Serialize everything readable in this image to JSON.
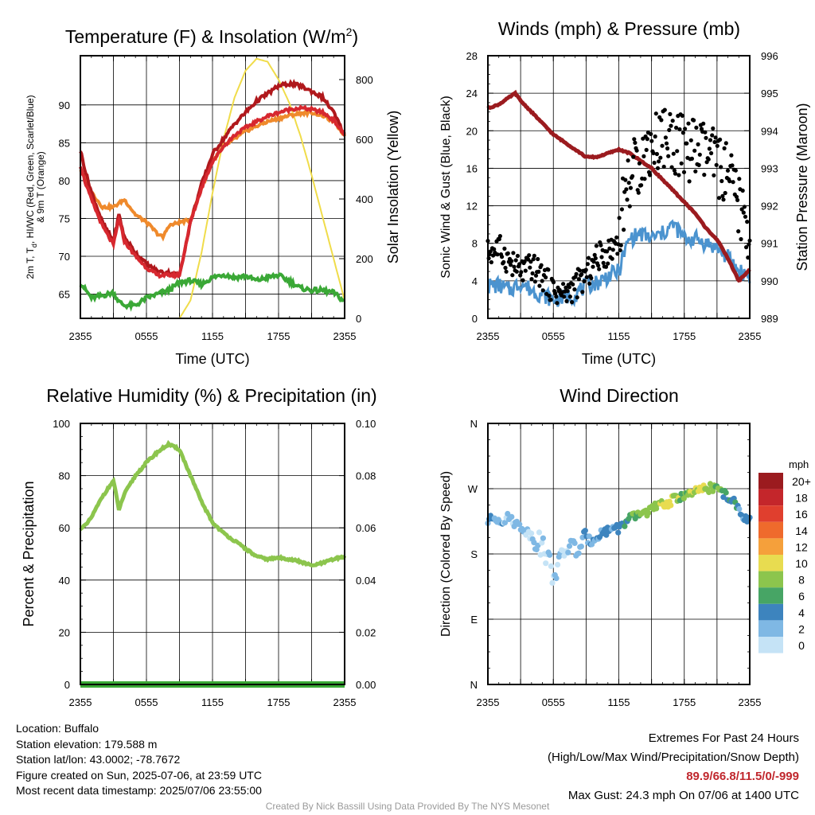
{
  "colors": {
    "temp_2m": "#b0181c",
    "dewpoint": "#3aa836",
    "heat_index": "#d7282f",
    "temp_9m": "#ef8a2c",
    "insolation": "#f0dc4a",
    "sonic_wind": "#4b93cf",
    "gust": "#000000",
    "pressure": "#9b1b1f",
    "humidity": "#8cc54d",
    "precip": "#3aa836",
    "extremes": "#c0272d"
  },
  "chart_data": [
    {
      "type": "line",
      "title": "Temperature (F) & Insolation (W/m²)",
      "title_main": "Temperature (F) & Insolation (W/m",
      "title_sup": "2",
      "title_close": ")",
      "xlabel": "Time (UTC)",
      "ylabel_lines": [
        "2m T, T",
        "d",
        ", HI/WC (Red, Green, Scarlet/Blue)",
        "& 9m T (Orange)"
      ],
      "y2label": "Solar Insolation (Yellow)",
      "x_ticks": [
        "2355",
        "0555",
        "1155",
        "1755",
        "2355"
      ],
      "y_ticks": [
        65,
        70,
        75,
        80,
        85,
        90
      ],
      "y2_ticks": [
        0,
        200,
        400,
        600,
        800
      ],
      "ylim": [
        61.8,
        96.5
      ],
      "y2lim": [
        0,
        880
      ],
      "xlim": [
        0,
        24
      ],
      "grid": true,
      "series": [
        {
          "key": "temp_2m",
          "x": [
            0,
            0.5,
            1,
            2,
            3,
            3.5,
            4,
            5,
            6,
            7,
            8,
            9,
            10,
            11,
            12,
            13,
            14,
            15,
            16,
            17,
            18,
            19,
            20,
            21,
            22,
            23,
            24
          ],
          "y": [
            84,
            81,
            78.5,
            74.5,
            72,
            75.5,
            72.5,
            70.5,
            69,
            68,
            67.8,
            67.5,
            74.5,
            79.5,
            83.5,
            85.5,
            87.5,
            89,
            90.5,
            91.5,
            92.5,
            92.8,
            92.5,
            91.8,
            91,
            89,
            86
          ]
        },
        {
          "key": "dewpoint",
          "x": [
            0,
            1,
            2,
            3,
            3.5,
            4,
            5,
            6,
            7,
            8,
            9,
            10,
            11,
            12,
            13,
            14,
            15,
            16,
            17,
            18,
            19,
            20,
            21,
            22,
            23,
            24
          ],
          "y": [
            66.5,
            64.5,
            64.8,
            65.2,
            64,
            63.5,
            63.5,
            64.5,
            65,
            65.5,
            66.5,
            66.8,
            66.3,
            67.2,
            67.6,
            67.2,
            67.4,
            66.8,
            67.2,
            67.5,
            66.7,
            65.8,
            65.5,
            65.5,
            65.2,
            64
          ]
        },
        {
          "key": "heat_index",
          "x": [
            0,
            0.5,
            1,
            2,
            3,
            3.5,
            4,
            5,
            6,
            7,
            8,
            9,
            10,
            11,
            12,
            13,
            14,
            15,
            16,
            17,
            18,
            19,
            20,
            21,
            22,
            23,
            24
          ],
          "y": [
            82,
            79.5,
            77.5,
            74,
            71.5,
            75,
            72,
            70,
            68.5,
            67.5,
            67.5,
            67.5,
            74.5,
            79,
            82.5,
            84.5,
            86,
            87,
            87.8,
            88.5,
            89,
            89.4,
            89.6,
            89.4,
            89,
            88,
            86
          ]
        },
        {
          "key": "temp_9m",
          "x": [
            0,
            1,
            2,
            3,
            4,
            5,
            6,
            7,
            7.5,
            8,
            9,
            10,
            11,
            12,
            13,
            14,
            15,
            16,
            17,
            18,
            19,
            20,
            21,
            22,
            23,
            24
          ],
          "y": [
            81.5,
            78.5,
            76.5,
            76.5,
            77.5,
            75.5,
            74.5,
            73,
            72.5,
            74,
            74.5,
            74.8,
            79,
            82.5,
            84.5,
            85.5,
            86.5,
            87.2,
            87.8,
            88.2,
            88.6,
            88.9,
            89,
            88.6,
            87.8,
            86
          ]
        },
        {
          "key": "insolation",
          "axis": "y2",
          "x": [
            0,
            1,
            2,
            3,
            4,
            5,
            6,
            7,
            8,
            9,
            10,
            11,
            12,
            13,
            14,
            15,
            16,
            17,
            18,
            19,
            20,
            21,
            22,
            23,
            24
          ],
          "y": [
            0,
            0,
            0,
            0,
            0,
            0,
            0,
            0,
            0,
            0,
            60,
            220,
            420,
            600,
            740,
            830,
            870,
            860,
            800,
            720,
            610,
            480,
            340,
            200,
            60
          ]
        }
      ]
    },
    {
      "type": "line",
      "title": "Winds (mph) & Pressure (mb)",
      "xlabel": "Time (UTC)",
      "ylabel": "Sonic Wind & Gust (Blue, Black)",
      "y2label": "Station Pressure (Maroon)",
      "x_ticks": [
        "2355",
        "0555",
        "1155",
        "1755",
        "2355"
      ],
      "y_ticks": [
        0,
        4,
        8,
        12,
        16,
        20,
        24,
        28
      ],
      "y2_ticks": [
        989,
        990,
        991,
        992,
        993,
        994,
        995,
        996
      ],
      "ylim": [
        0,
        28
      ],
      "y2lim": [
        989,
        996
      ],
      "xlim": [
        0,
        24
      ],
      "grid": true,
      "series": [
        {
          "key": "pressure",
          "axis": "y2",
          "x": [
            0,
            1,
            2,
            2.5,
            3,
            4,
            5,
            6,
            7,
            8,
            9,
            10,
            11,
            12,
            13,
            14,
            15,
            16,
            17,
            18,
            19,
            20,
            21,
            22,
            23,
            24
          ],
          "y": [
            994.6,
            994.7,
            994.9,
            995.0,
            994.8,
            994.5,
            994.2,
            993.9,
            993.7,
            993.5,
            993.3,
            993.3,
            993.4,
            993.5,
            993.4,
            993.2,
            993.0,
            992.7,
            992.4,
            992.1,
            991.8,
            991.4,
            991.1,
            990.6,
            990.0,
            990.3
          ]
        },
        {
          "key": "sonic_wind",
          "x": [
            0,
            1,
            2,
            3,
            4,
            5,
            6,
            7,
            8,
            9,
            10,
            11,
            12,
            12.5,
            13,
            14,
            15,
            16,
            17,
            18,
            19,
            20,
            21,
            22,
            23,
            24
          ],
          "y": [
            3.5,
            3.5,
            3,
            3.8,
            3,
            2.5,
            2,
            2.2,
            2.5,
            3.5,
            3.8,
            4.5,
            5,
            7,
            8.5,
            9,
            8.5,
            9,
            10,
            8.5,
            8.5,
            8,
            7.5,
            6.5,
            5,
            4.5
          ]
        },
        {
          "key": "gust",
          "style": "points",
          "x": [
            0,
            1,
            2,
            3,
            4,
            5,
            6,
            7,
            8,
            9,
            10,
            11,
            12,
            12.5,
            13,
            14,
            15,
            16,
            17,
            18,
            19,
            20,
            21,
            22,
            23,
            24
          ],
          "y": [
            7,
            7.5,
            6,
            5,
            5.5,
            4.5,
            3,
            2.5,
            3.5,
            4.5,
            6.5,
            7,
            8.5,
            13,
            15,
            17,
            18.5,
            19.5,
            19,
            18,
            18,
            17.5,
            16.5,
            15,
            12,
            9
          ]
        }
      ]
    },
    {
      "type": "line",
      "title": "Relative Humidity (%) & Precipitation (in)",
      "ylabel": "Percent & Precipitation",
      "x_ticks": [
        "2355",
        "0555",
        "1155",
        "1755",
        "2355"
      ],
      "y_ticks": [
        0,
        20,
        40,
        60,
        80,
        100
      ],
      "y2_ticks": [
        "0.00",
        "0.02",
        "0.04",
        "0.06",
        "0.08",
        "0.10"
      ],
      "ylim": [
        0,
        100
      ],
      "y2lim": [
        0,
        0.1
      ],
      "xlim": [
        0,
        24
      ],
      "grid": true,
      "series": [
        {
          "key": "humidity",
          "x": [
            0,
            0.5,
            1,
            2,
            3,
            3.5,
            4,
            5,
            6,
            7,
            8,
            9,
            10,
            11,
            12,
            13,
            14,
            15,
            16,
            17,
            18,
            19,
            20,
            21,
            22,
            23,
            24
          ],
          "y": [
            60,
            61,
            64,
            72,
            78,
            67,
            73,
            80,
            85,
            89,
            92,
            90,
            80,
            70,
            62,
            58,
            55,
            52,
            49,
            48,
            48.5,
            48,
            47,
            45.5,
            46.5,
            48,
            49
          ]
        },
        {
          "key": "precip",
          "axis": "y2",
          "x": [
            0,
            24
          ],
          "y": [
            0,
            0
          ]
        }
      ]
    },
    {
      "type": "scatter",
      "title": "Wind Direction",
      "ylabel": "Direction (Colored By Speed)",
      "x_ticks": [
        "2355",
        "0555",
        "1155",
        "1755",
        "2355"
      ],
      "y_ticks": [
        "N",
        "E",
        "S",
        "W",
        "N"
      ],
      "ylim": [
        0,
        360
      ],
      "xlim": [
        0,
        24
      ],
      "grid": true,
      "legend_title": "mph",
      "legend_labels": [
        "20+",
        "18",
        "16",
        "14",
        "12",
        "10",
        "8",
        "6",
        "4",
        "2",
        "0"
      ],
      "legend_colors": [
        "#9b1b1f",
        "#c4262b",
        "#e03f2e",
        "#ef6a2c",
        "#f5a03b",
        "#e8dc50",
        "#8cc54d",
        "#47a565",
        "#3d84be",
        "#7fb8e4",
        "#c5e3f6"
      ],
      "points": {
        "x": [
          0,
          0.5,
          1,
          1.5,
          2,
          2.5,
          3,
          3.5,
          4,
          4.5,
          5,
          5.5,
          6,
          6.5,
          7,
          7.5,
          8,
          8.5,
          9,
          9.5,
          10,
          10.5,
          11,
          11.5,
          12,
          12.5,
          13,
          13.5,
          14,
          14.5,
          15,
          15.5,
          16,
          16.5,
          17,
          17.5,
          18,
          18.5,
          19,
          19.5,
          20,
          20.5,
          21,
          21.5,
          22,
          22.5,
          23,
          23.5,
          24
        ],
        "y": [
          225,
          230,
          228,
          226,
          232,
          222,
          218,
          212,
          205,
          200,
          190,
          175,
          150,
          165,
          180,
          195,
          185,
          190,
          200,
          198,
          205,
          210,
          212,
          218,
          215,
          222,
          228,
          232,
          236,
          238,
          242,
          245,
          248,
          250,
          255,
          258,
          262,
          262,
          265,
          268,
          270,
          272,
          270,
          265,
          258,
          252,
          240,
          232,
          225
        ],
        "speed": [
          3,
          3,
          2,
          2,
          2,
          2,
          2,
          1,
          1,
          1,
          1,
          1,
          0,
          1,
          1,
          1,
          2,
          2,
          3,
          3,
          3,
          3,
          4,
          4,
          4,
          5,
          6,
          7,
          8,
          7,
          9,
          8,
          9,
          10,
          9,
          8,
          7,
          8,
          9,
          10,
          8,
          8,
          7,
          6,
          5,
          5,
          4,
          4,
          4
        ]
      }
    }
  ],
  "info": {
    "location": "Location: Buffalo",
    "elevation": "Station elevation: 179.588 m",
    "latlon": "Station lat/lon: 43.0002; -78.7672",
    "created": "Figure created on Sun, 2025-07-06, at 23:59 UTC",
    "recent": "Most recent data timestamp: 2025/07/06 23:55:00"
  },
  "extremes": {
    "title": "Extremes For Past 24 Hours",
    "subtitle": "(High/Low/Max Wind/Precipitation/Snow Depth)",
    "values": "89.9/66.8/11.5/0/-999",
    "gust": "Max Gust: 24.3 mph On 07/06 at 1400 UTC"
  },
  "credit": "Created By Nick Bassill Using Data Provided By The NYS Mesonet"
}
